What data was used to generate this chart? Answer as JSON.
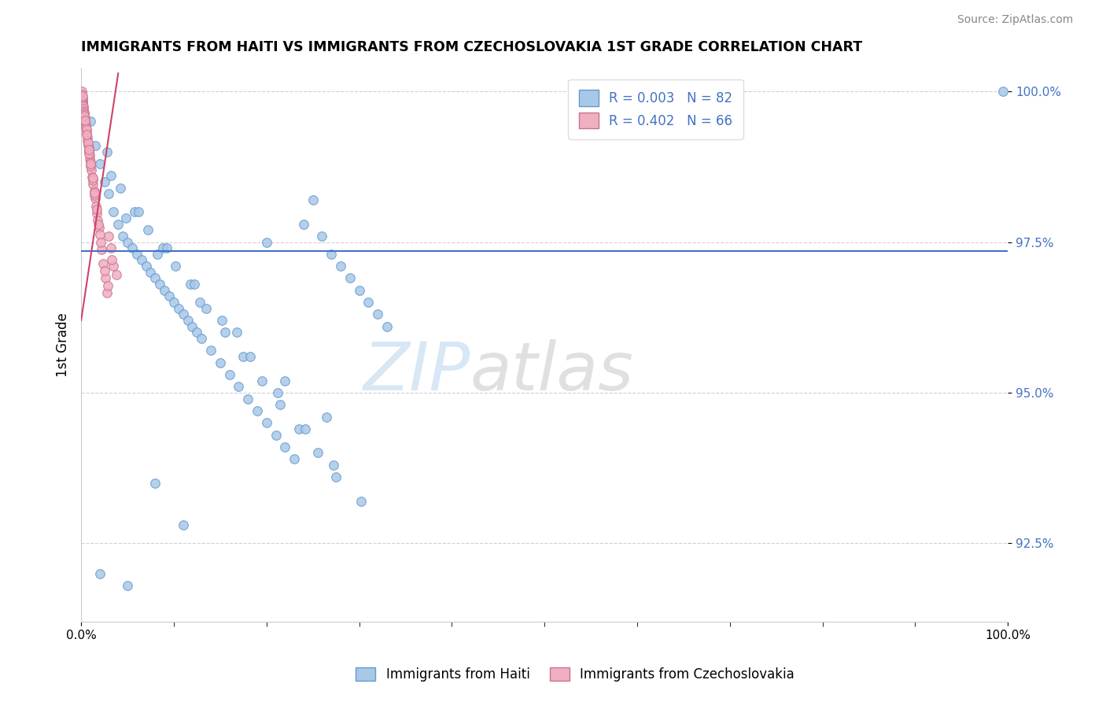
{
  "title": "IMMIGRANTS FROM HAITI VS IMMIGRANTS FROM CZECHOSLOVAKIA 1ST GRADE CORRELATION CHART",
  "source": "Source: ZipAtlas.com",
  "ylabel": "1st Grade",
  "haiti_color": "#a8c8e8",
  "haiti_edge": "#6699cc",
  "czech_color": "#f0b0c0",
  "czech_edge": "#cc7090",
  "regression_blue": "#4472c4",
  "regression_pink": "#cc4466",
  "watermark_zip": "ZIP",
  "watermark_atlas": "atlas",
  "background": "#ffffff",
  "xlim": [
    0,
    100
  ],
  "ylim": [
    91.2,
    100.4
  ],
  "yticks": [
    92.5,
    95.0,
    97.5,
    100.0
  ],
  "blue_hline_y": 97.35,
  "legend_labels": [
    "R = 0.003   N = 82",
    "R = 0.402   N = 66"
  ],
  "haiti_points_x": [
    1.5,
    2.0,
    2.5,
    3.0,
    3.5,
    4.0,
    4.5,
    5.0,
    5.5,
    6.0,
    6.5,
    7.0,
    7.5,
    8.0,
    8.5,
    9.0,
    9.5,
    10.0,
    10.5,
    11.0,
    11.5,
    12.0,
    12.5,
    13.0,
    14.0,
    15.0,
    16.0,
    17.0,
    18.0,
    19.0,
    20.0,
    21.0,
    22.0,
    23.0,
    24.0,
    25.0,
    26.0,
    27.0,
    28.0,
    29.0,
    30.0,
    31.0,
    32.0,
    33.0,
    1.0,
    2.8,
    4.2,
    5.8,
    7.2,
    8.8,
    10.2,
    11.8,
    13.5,
    15.5,
    17.5,
    19.5,
    21.5,
    23.5,
    25.5,
    27.5,
    3.2,
    6.2,
    9.2,
    12.2,
    15.2,
    18.2,
    21.2,
    24.2,
    27.2,
    30.2,
    4.8,
    8.2,
    12.8,
    16.8,
    22.0,
    26.5,
    20.0,
    99.5,
    2.0,
    5.0,
    8.0,
    11.0
  ],
  "haiti_points_y": [
    99.1,
    98.8,
    98.5,
    98.3,
    98.0,
    97.8,
    97.6,
    97.5,
    97.4,
    97.3,
    97.2,
    97.1,
    97.0,
    96.9,
    96.8,
    96.7,
    96.6,
    96.5,
    96.4,
    96.3,
    96.2,
    96.1,
    96.0,
    95.9,
    95.7,
    95.5,
    95.3,
    95.1,
    94.9,
    94.7,
    94.5,
    94.3,
    94.1,
    93.9,
    97.8,
    98.2,
    97.6,
    97.3,
    97.1,
    96.9,
    96.7,
    96.5,
    96.3,
    96.1,
    99.5,
    99.0,
    98.4,
    98.0,
    97.7,
    97.4,
    97.1,
    96.8,
    96.4,
    96.0,
    95.6,
    95.2,
    94.8,
    94.4,
    94.0,
    93.6,
    98.6,
    98.0,
    97.4,
    96.8,
    96.2,
    95.6,
    95.0,
    94.4,
    93.8,
    93.2,
    97.9,
    97.3,
    96.5,
    96.0,
    95.2,
    94.6,
    97.5,
    100.0,
    92.0,
    91.8,
    93.5,
    92.8
  ],
  "czech_points_x": [
    0.05,
    0.08,
    0.1,
    0.12,
    0.14,
    0.16,
    0.18,
    0.2,
    0.22,
    0.25,
    0.28,
    0.3,
    0.33,
    0.36,
    0.4,
    0.44,
    0.48,
    0.52,
    0.56,
    0.6,
    0.65,
    0.7,
    0.75,
    0.8,
    0.85,
    0.9,
    0.95,
    1.0,
    1.1,
    1.2,
    1.3,
    1.4,
    1.5,
    1.6,
    1.7,
    1.8,
    1.9,
    2.0,
    2.2,
    2.4,
    2.6,
    2.8,
    3.0,
    3.2,
    3.5,
    0.15,
    0.35,
    0.55,
    0.72,
    0.88,
    1.05,
    1.25,
    1.45,
    1.65,
    1.85,
    2.1,
    2.5,
    2.9,
    3.3,
    3.8,
    0.42,
    0.62,
    0.82,
    1.02,
    1.22,
    1.42
  ],
  "czech_points_y": [
    100.0,
    99.95,
    99.9,
    99.88,
    99.85,
    99.83,
    99.8,
    99.78,
    99.75,
    99.72,
    99.68,
    99.65,
    99.62,
    99.58,
    99.55,
    99.5,
    99.45,
    99.4,
    99.35,
    99.3,
    99.24,
    99.18,
    99.12,
    99.06,
    99.0,
    98.94,
    98.88,
    98.82,
    98.7,
    98.58,
    98.46,
    98.34,
    98.22,
    98.1,
    97.98,
    97.86,
    97.74,
    97.62,
    97.38,
    97.14,
    96.9,
    96.66,
    97.6,
    97.4,
    97.1,
    99.92,
    99.6,
    99.38,
    99.15,
    98.97,
    98.76,
    98.52,
    98.28,
    98.04,
    97.8,
    97.5,
    97.02,
    96.78,
    97.2,
    96.96,
    99.52,
    99.28,
    99.04,
    98.8,
    98.56,
    98.32
  ]
}
